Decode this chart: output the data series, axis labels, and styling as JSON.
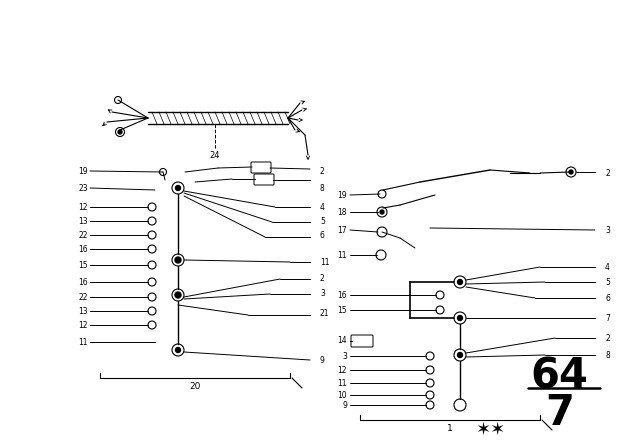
{
  "bg_color": "#ffffff",
  "line_color": "#000000",
  "figsize": [
    6.4,
    4.48
  ],
  "dpi": 100,
  "xlim": [
    0,
    640
  ],
  "ylim": [
    0,
    448
  ]
}
